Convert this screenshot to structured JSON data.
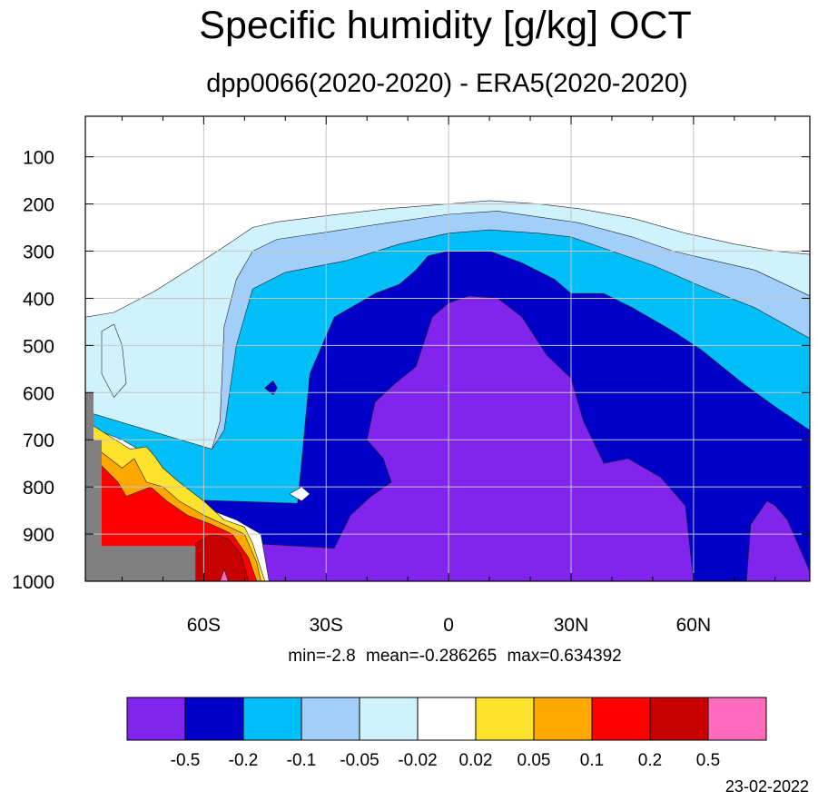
{
  "title": "Specific humidity [g/kg] OCT",
  "subtitle": "dpp0066(2020-2020) - ERA5(2020-2020)",
  "stats": "min=-2.8   mean=-0.286265   max=0.634392",
  "date": "23-02-2022",
  "chart_data": {
    "type": "heatmap",
    "x_ticks": [
      {
        "value": -60,
        "label": "60S"
      },
      {
        "value": -30,
        "label": "30S"
      },
      {
        "value": 0,
        "label": "0"
      },
      {
        "value": 30,
        "label": "30N"
      },
      {
        "value": 60,
        "label": "60N"
      }
    ],
    "y_ticks": [
      {
        "value": 100,
        "label": "100"
      },
      {
        "value": 200,
        "label": "200"
      },
      {
        "value": 300,
        "label": "300"
      },
      {
        "value": 400,
        "label": "400"
      },
      {
        "value": 500,
        "label": "500"
      },
      {
        "value": 600,
        "label": "600"
      },
      {
        "value": 700,
        "label": "700"
      },
      {
        "value": 800,
        "label": "800"
      },
      {
        "value": 900,
        "label": "900"
      },
      {
        "value": 1000,
        "label": "1000"
      }
    ],
    "xlim": [
      -89,
      88.5
    ],
    "ylim": [
      14,
      1000
    ],
    "grid": true,
    "colorbar": {
      "colors": [
        "#8125ee",
        "#0000c8",
        "#00bef8",
        "#a1cffa",
        "#d0f2fd",
        "#ffffff",
        "#ffe22b",
        "#ffa800",
        "#ff0000",
        "#c80000",
        "#fe6bbd"
      ],
      "labels": [
        "-0.5",
        "-0.2",
        "-0.1",
        "-0.05",
        "-0.02",
        "0.02",
        "0.05",
        "0.1",
        "0.2",
        "0.5"
      ]
    },
    "regions": [
      {
        "level": "-0.02",
        "color": "#d0f2fd",
        "points": [
          [
            -89,
            1000
          ],
          [
            -89,
            440
          ],
          [
            -82,
            430
          ],
          [
            -72,
            385
          ],
          [
            -62,
            330
          ],
          [
            -54,
            285
          ],
          [
            -48,
            250
          ],
          [
            -42,
            238
          ],
          [
            -30,
            225
          ],
          [
            -15,
            210
          ],
          [
            0,
            200
          ],
          [
            10,
            193
          ],
          [
            22,
            200
          ],
          [
            32,
            210
          ],
          [
            45,
            230
          ],
          [
            58,
            262
          ],
          [
            70,
            285
          ],
          [
            80,
            300
          ],
          [
            88.5,
            307
          ],
          [
            88.5,
            1000
          ]
        ]
      },
      {
        "level": "-0.05",
        "color": "#a1cffa",
        "points": [
          [
            -89,
            1000
          ],
          [
            -89,
            640
          ],
          [
            -64,
            710
          ],
          [
            -58,
            720
          ],
          [
            -56,
            660
          ],
          [
            -55,
            460
          ],
          [
            -52,
            360
          ],
          [
            -48,
            300
          ],
          [
            -42,
            275
          ],
          [
            -30,
            260
          ],
          [
            -15,
            240
          ],
          [
            0,
            222
          ],
          [
            12,
            215
          ],
          [
            24,
            230
          ],
          [
            32,
            240
          ],
          [
            45,
            270
          ],
          [
            55,
            300
          ],
          [
            65,
            320
          ],
          [
            75,
            340
          ],
          [
            88.5,
            395
          ],
          [
            88.5,
            1000
          ]
        ]
      },
      {
        "level": "-0.1",
        "color": "#00bef8",
        "points": [
          [
            -89,
            1000
          ],
          [
            -89,
            640
          ],
          [
            -58,
            720
          ],
          [
            -55,
            680
          ],
          [
            -52,
            500
          ],
          [
            -48,
            380
          ],
          [
            -40,
            345
          ],
          [
            -25,
            320
          ],
          [
            -12,
            285
          ],
          [
            0,
            262
          ],
          [
            10,
            255
          ],
          [
            22,
            262
          ],
          [
            30,
            270
          ],
          [
            40,
            300
          ],
          [
            50,
            330
          ],
          [
            62,
            375
          ],
          [
            75,
            420
          ],
          [
            88.5,
            485
          ],
          [
            88.5,
            1000
          ]
        ]
      },
      {
        "level": "-0.2",
        "color": "#0000c8",
        "points": [
          [
            -89,
            1000
          ],
          [
            -89,
            820
          ],
          [
            -37,
            835
          ],
          [
            -34,
            560
          ],
          [
            -28,
            440
          ],
          [
            -18,
            390
          ],
          [
            -12,
            370
          ],
          [
            -8,
            340
          ],
          [
            -5,
            310
          ],
          [
            0,
            300
          ],
          [
            10,
            300
          ],
          [
            18,
            325
          ],
          [
            26,
            360
          ],
          [
            30,
            390
          ],
          [
            38,
            390
          ],
          [
            45,
            420
          ],
          [
            55,
            470
          ],
          [
            62,
            510
          ],
          [
            72,
            580
          ],
          [
            80,
            630
          ],
          [
            88.5,
            680
          ],
          [
            88.5,
            1000
          ]
        ]
      },
      {
        "level": "-0.5",
        "color": "#8125ee",
        "points": [
          [
            -89,
            1000
          ],
          [
            -89,
            900
          ],
          [
            -28,
            930
          ],
          [
            -24,
            860
          ],
          [
            -19,
            820
          ],
          [
            -14,
            790
          ],
          [
            -16,
            740
          ],
          [
            -20,
            700
          ],
          [
            -18,
            620
          ],
          [
            -13,
            580
          ],
          [
            -8,
            545
          ],
          [
            -4,
            440
          ],
          [
            0,
            410
          ],
          [
            5,
            395
          ],
          [
            12,
            400
          ],
          [
            18,
            440
          ],
          [
            24,
            520
          ],
          [
            30,
            570
          ],
          [
            33,
            660
          ],
          [
            38,
            750
          ],
          [
            44,
            740
          ],
          [
            52,
            780
          ],
          [
            58,
            840
          ],
          [
            60,
            1000
          ]
        ]
      },
      {
        "level": "-0.5",
        "color": "#8125ee",
        "points": [
          [
            73,
            1000
          ],
          [
            74,
            880
          ],
          [
            78,
            830
          ],
          [
            80,
            840
          ],
          [
            83,
            870
          ],
          [
            86,
            930
          ],
          [
            88.5,
            980
          ],
          [
            88.5,
            1000
          ]
        ]
      },
      {
        "level": "-0.2",
        "color": "#0000c8",
        "points": [
          [
            -45,
            590
          ],
          [
            -43,
            575
          ],
          [
            -42,
            590
          ],
          [
            -43,
            605
          ]
        ]
      },
      {
        "level": "-0.02",
        "color": "#d0f2fd",
        "points": [
          [
            -85,
            470
          ],
          [
            -82,
            455
          ],
          [
            -80,
            500
          ],
          [
            -79,
            580
          ],
          [
            -82,
            610
          ],
          [
            -85,
            560
          ]
        ]
      },
      {
        "level": "0.02",
        "color": "#ffffff",
        "points": [
          [
            -89,
            1000
          ],
          [
            -89,
            670
          ],
          [
            -80,
            700
          ],
          [
            -76,
            720
          ],
          [
            -71,
            760
          ],
          [
            -66,
            800
          ],
          [
            -62,
            830
          ],
          [
            -58,
            850
          ],
          [
            -52,
            870
          ],
          [
            -46,
            900
          ],
          [
            -44,
            1000
          ]
        ]
      },
      {
        "level": "0.02",
        "color": "#ffffff",
        "points": [
          [
            -39,
            815
          ],
          [
            -36,
            800
          ],
          [
            -34,
            815
          ],
          [
            -36,
            830
          ]
        ]
      },
      {
        "level": "0.05",
        "color": "#ffe22b",
        "points": [
          [
            -89,
            1000
          ],
          [
            -89,
            660
          ],
          [
            -78,
            720
          ],
          [
            -74,
            715
          ],
          [
            -72,
            735
          ],
          [
            -70,
            760
          ],
          [
            -66,
            790
          ],
          [
            -60,
            830
          ],
          [
            -55,
            870
          ],
          [
            -50,
            885
          ],
          [
            -48,
            920
          ],
          [
            -45,
            1000
          ]
        ]
      },
      {
        "level": "0.1",
        "color": "#ffa800",
        "points": [
          [
            -89,
            1000
          ],
          [
            -89,
            700
          ],
          [
            -80,
            760
          ],
          [
            -77,
            740
          ],
          [
            -74,
            790
          ],
          [
            -70,
            800
          ],
          [
            -66,
            830
          ],
          [
            -60,
            860
          ],
          [
            -55,
            880
          ],
          [
            -50,
            900
          ],
          [
            -47,
            960
          ],
          [
            -46,
            1000
          ]
        ]
      },
      {
        "level": "0.2",
        "color": "#ff0000",
        "points": [
          [
            -89,
            1000
          ],
          [
            -89,
            720
          ],
          [
            -81,
            790
          ],
          [
            -79,
            820
          ],
          [
            -73,
            800
          ],
          [
            -69,
            830
          ],
          [
            -64,
            860
          ],
          [
            -58,
            880
          ],
          [
            -53,
            900
          ],
          [
            -49,
            950
          ],
          [
            -47,
            1000
          ]
        ]
      },
      {
        "level": "0.5",
        "color": "#c80000",
        "points": [
          [
            -62,
            1000
          ],
          [
            -62,
            920
          ],
          [
            -58,
            900
          ],
          [
            -54,
            910
          ],
          [
            -51,
            940
          ],
          [
            -49,
            1000
          ]
        ]
      },
      {
        "level": ">0.5",
        "color": "#fe6bbd",
        "points": [
          [
            -56,
            1000
          ],
          [
            -55,
            975
          ],
          [
            -54,
            1000
          ]
        ]
      }
    ],
    "masked_regions": [
      {
        "color": "#808080",
        "points": [
          [
            -89,
            1000
          ],
          [
            -89,
            600
          ],
          [
            -87,
            600
          ],
          [
            -87,
            700
          ],
          [
            -85,
            700
          ],
          [
            -85,
            925
          ],
          [
            -62,
            925
          ],
          [
            -62,
            1000
          ]
        ]
      }
    ]
  }
}
